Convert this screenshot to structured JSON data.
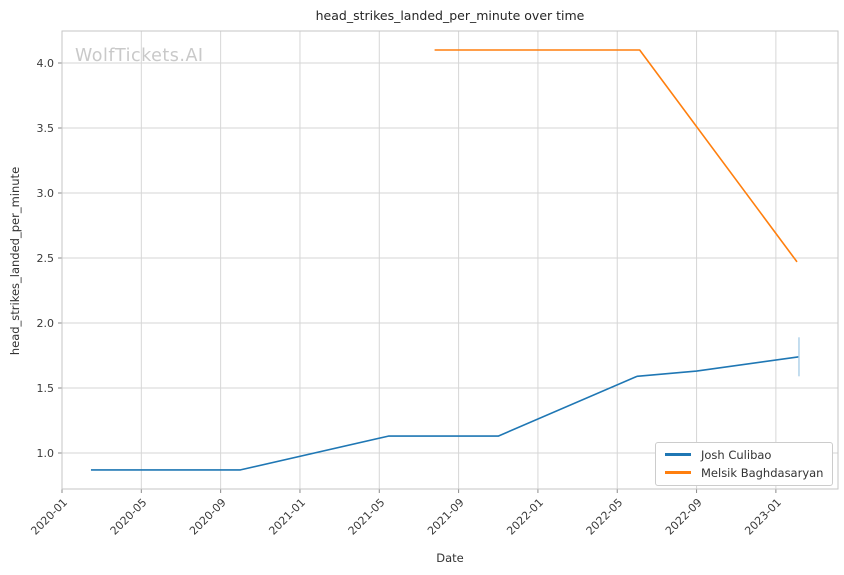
{
  "watermark": {
    "text": "WolfTickets.AI",
    "color": "#c9c9c9"
  },
  "chart_data": {
    "type": "line",
    "title": "head_strikes_landed_per_minute over time",
    "xlabel": "Date",
    "ylabel": "head_strikes_landed_per_minute",
    "grid": true,
    "legend_position": "lower right",
    "x_ticks": [
      "2020-01",
      "2020-05",
      "2020-09",
      "2021-01",
      "2021-05",
      "2021-09",
      "2022-01",
      "2022-05",
      "2022-09",
      "2023-01"
    ],
    "y_ticks": [
      "1.0",
      "1.5",
      "2.0",
      "2.5",
      "3.0",
      "3.5",
      "4.0"
    ],
    "ylim": [
      0.72,
      4.25
    ],
    "colors": {
      "grid": "#d6d6d6",
      "spine": "#c6c6c6",
      "tick": "#8a8a8a",
      "tick_text": "#3a3a3a"
    },
    "series": [
      {
        "name": "Josh Culibao",
        "color": "#1f77b4",
        "points": [
          {
            "date": "2020-02-15",
            "value": 0.87
          },
          {
            "date": "2020-10-01",
            "value": 0.87
          },
          {
            "date": "2021-05-15",
            "value": 1.13
          },
          {
            "date": "2021-11-01",
            "value": 1.13
          },
          {
            "date": "2022-06-01",
            "value": 1.59
          },
          {
            "date": "2022-09-01",
            "value": 1.63
          },
          {
            "date": "2023-02-06",
            "value": 1.74
          }
        ]
      },
      {
        "name": "Melsik Baghdasaryan",
        "color": "#ff7f0e",
        "points": [
          {
            "date": "2021-07-25",
            "value": 4.1
          },
          {
            "date": "2022-06-05",
            "value": 4.1
          },
          {
            "date": "2023-02-03",
            "value": 2.47
          }
        ]
      }
    ],
    "error_bar": {
      "series": "Josh Culibao",
      "date": "2023-02-06",
      "low": 1.59,
      "high": 1.89,
      "color": "#abcfe8"
    }
  }
}
